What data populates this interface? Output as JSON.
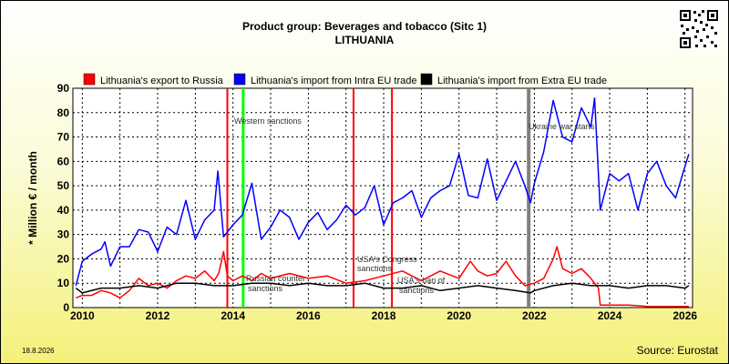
{
  "header": {
    "title": "Product group: Beverages and tobacco (Sitc 1)",
    "subtitle": "LITHUANIA"
  },
  "footer": {
    "date": "18.8.2026",
    "source": "Source: Eurostat"
  },
  "colors": {
    "export_russia": "#ff0000",
    "import_intra": "#0000ff",
    "import_extra": "#000000",
    "western_sanctions": "#00ff00",
    "ukraine_war": "#808080",
    "marker_red": "#ff0000"
  },
  "chart_data": {
    "type": "line",
    "title": "Product group: Beverages and tobacco (Sitc 1)",
    "subtitle": "LITHUANIA",
    "ylabel": "* Million € / month",
    "xlim": [
      2009.75,
      2026.2
    ],
    "ylim": [
      0,
      90
    ],
    "yticks": [
      0,
      10,
      20,
      30,
      40,
      50,
      60,
      70,
      80,
      90
    ],
    "xticks": [
      2010,
      2012,
      2014,
      2016,
      2018,
      2020,
      2022,
      2024,
      2026
    ],
    "grid": true,
    "legend": "top",
    "series": [
      {
        "name": "Lithuania's export to Russia",
        "color": "#ff0000",
        "x": [
          2009.83,
          2010.0,
          2010.25,
          2010.5,
          2010.75,
          2011.0,
          2011.25,
          2011.5,
          2011.75,
          2012.0,
          2012.25,
          2012.5,
          2012.75,
          2013.0,
          2013.25,
          2013.5,
          2013.62,
          2013.75,
          2013.85,
          2014.0,
          2014.25,
          2014.5,
          2014.75,
          2015.0,
          2015.5,
          2016.0,
          2016.5,
          2017.0,
          2017.5,
          2018.0,
          2018.5,
          2019.0,
          2019.5,
          2020.0,
          2020.3,
          2020.5,
          2020.75,
          2021.0,
          2021.25,
          2021.5,
          2021.75,
          2022.0,
          2022.25,
          2022.5,
          2022.6,
          2022.75,
          2023.0,
          2023.25,
          2023.5,
          2023.7,
          2023.75,
          2024.0,
          2024.5,
          2025.0,
          2025.5,
          2026.0,
          2026.1
        ],
        "values": [
          4,
          5,
          5,
          7,
          6,
          4,
          7,
          12,
          9,
          10,
          8,
          11,
          13,
          12,
          15,
          11,
          14,
          23,
          13,
          11,
          13,
          11,
          14,
          12,
          14,
          12,
          13,
          10,
          11,
          13,
          15,
          11,
          15,
          12,
          19,
          15,
          13,
          14,
          19,
          13,
          9,
          10,
          12,
          20,
          25,
          16,
          14,
          16,
          12,
          8,
          1,
          1,
          1,
          0.5,
          0.5,
          0.5,
          0.5
        ]
      },
      {
        "name": "Lithuania's import from Intra EU trade",
        "color": "#0000ff",
        "x": [
          2009.83,
          2010.0,
          2010.25,
          2010.5,
          2010.6,
          2010.75,
          2011.0,
          2011.25,
          2011.5,
          2011.75,
          2012.0,
          2012.25,
          2012.5,
          2012.75,
          2013.0,
          2013.25,
          2013.5,
          2013.6,
          2013.75,
          2014.0,
          2014.25,
          2014.5,
          2014.75,
          2015.0,
          2015.25,
          2015.5,
          2015.75,
          2016.0,
          2016.25,
          2016.5,
          2016.75,
          2017.0,
          2017.25,
          2017.5,
          2017.75,
          2018.0,
          2018.25,
          2018.5,
          2018.75,
          2019.0,
          2019.25,
          2019.5,
          2019.75,
          2020.0,
          2020.25,
          2020.5,
          2020.75,
          2021.0,
          2021.25,
          2021.5,
          2021.75,
          2021.9,
          2022.0,
          2022.25,
          2022.5,
          2022.75,
          2023.0,
          2023.25,
          2023.5,
          2023.6,
          2023.75,
          2024.0,
          2024.25,
          2024.5,
          2024.75,
          2025.0,
          2025.25,
          2025.5,
          2025.75,
          2026.0,
          2026.1
        ],
        "values": [
          9,
          19,
          22,
          24,
          27,
          17,
          25,
          25,
          32,
          31,
          23,
          33,
          30,
          44,
          28,
          36,
          40,
          56,
          29,
          34,
          38,
          51,
          28,
          33,
          40,
          37,
          28,
          35,
          39,
          32,
          36,
          42,
          38,
          41,
          50,
          34,
          43,
          45,
          48,
          37,
          45,
          48,
          50,
          63,
          46,
          45,
          61,
          44,
          52,
          60,
          50,
          43,
          51,
          64,
          85,
          70,
          68,
          82,
          74,
          86,
          40,
          55,
          52,
          55,
          40,
          55,
          60,
          50,
          45,
          58,
          63
        ]
      },
      {
        "name": "Lithuania's import from Extra EU trade",
        "color": "#000000",
        "x": [
          2009.83,
          2010.0,
          2010.5,
          2011.0,
          2011.5,
          2012.0,
          2012.5,
          2013.0,
          2013.5,
          2014.0,
          2014.5,
          2015.0,
          2015.5,
          2016.0,
          2016.5,
          2017.0,
          2017.5,
          2018.0,
          2018.5,
          2019.0,
          2019.5,
          2020.0,
          2020.5,
          2021.0,
          2021.5,
          2021.9,
          2022.0,
          2022.5,
          2023.0,
          2023.5,
          2024.0,
          2024.5,
          2025.0,
          2025.5,
          2026.0,
          2026.1
        ],
        "values": [
          8,
          6,
          8,
          8,
          9,
          8,
          10,
          10,
          9,
          9,
          10,
          10,
          9,
          10,
          9,
          9,
          10,
          8,
          8,
          9,
          7,
          8,
          9,
          8,
          7,
          6,
          7,
          9,
          10,
          9,
          9,
          8,
          9,
          9,
          8,
          9
        ]
      }
    ],
    "events": [
      {
        "x": 2013.85,
        "label": "",
        "color": "#ff0000"
      },
      {
        "x": 2014.27,
        "label": "Western sanctions",
        "color": "#00ff00"
      },
      {
        "x": 2017.2,
        "label": "USA's Congress sanctions",
        "color": "#ff0000"
      },
      {
        "x": 2018.22,
        "label": "",
        "color": "#ff0000"
      },
      {
        "x": 2021.85,
        "label": "Ukraine war starts",
        "color": "#808080"
      }
    ],
    "annotations": [
      {
        "label": "Russian counter sanctions"
      },
      {
        "label": "USA's ban of sanctions"
      }
    ]
  }
}
